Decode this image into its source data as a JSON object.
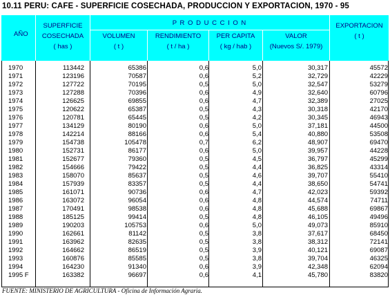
{
  "title": "10.11  PERU:  CAFE  -  SUPERFICIE COSECHADA, PRODUCCION Y EXPORTACION, 1970 - 95",
  "header": {
    "ano": "AÑO",
    "superficie_line1": "SUPERFICIE",
    "superficie_line2": "COSECHADA",
    "superficie_unit": "( has )",
    "produccion": "P R O D U C C I O N",
    "volumen": "VOLUMEN",
    "volumen_unit": "( t )",
    "rendimiento": "RENDIMIENTO",
    "rendimiento_unit": "( t / ha )",
    "per_capita": "PER CAPITA",
    "per_capita_unit": "( kg / hab )",
    "valor": "VALOR",
    "valor_unit": "(Nuevos S/. 1979)",
    "exportacion": "EXPORTACION",
    "exportacion_unit": "( t )"
  },
  "rows": [
    [
      "1970",
      "113442",
      "65386",
      "0,6",
      "5,0",
      "30,317",
      "45572"
    ],
    [
      "1971",
      "123196",
      "70587",
      "0,6",
      "5,2",
      "32,729",
      "42229"
    ],
    [
      "1972",
      "127722",
      "70195",
      "0,5",
      "5,0",
      "32,547",
      "53279"
    ],
    [
      "1973",
      "127288",
      "70396",
      "0,6",
      "4,9",
      "32,640",
      "60796"
    ],
    [
      "1974",
      "126625",
      "69855",
      "0,6",
      "4,7",
      "32,389",
      "27025"
    ],
    [
      "1975",
      "120622",
      "65387",
      "0,5",
      "4,3",
      "30,318",
      "42170"
    ],
    [
      "1976",
      "120781",
      "65445",
      "0,5",
      "4,2",
      "30,345",
      "46943"
    ],
    [
      "1977",
      "134129",
      "80190",
      "0,6",
      "5,0",
      "37,181",
      "44500"
    ],
    [
      "1978",
      "142214",
      "88166",
      "0,6",
      "5,4",
      "40,880",
      "53508"
    ],
    [
      "1979",
      "154738",
      "105478",
      "0,7",
      "6,2",
      "48,907",
      "69470"
    ],
    [
      "1980",
      "152731",
      "86177",
      "0,6",
      "5,0",
      "39,957",
      "44228"
    ],
    [
      "1981",
      "152677",
      "79360",
      "0,5",
      "4,5",
      "36,797",
      "45299"
    ],
    [
      "1982",
      "154666",
      "79422",
      "0,5",
      "4,4",
      "36,825",
      "43314"
    ],
    [
      "1983",
      "158070",
      "85637",
      "0,5",
      "4,6",
      "39,707",
      "55410"
    ],
    [
      "1984",
      "157939",
      "83357",
      "0,5",
      "4,4",
      "38,650",
      "54741"
    ],
    [
      "1985",
      "161071",
      "90736",
      "0,6",
      "4,7",
      "42,023",
      "59392"
    ],
    [
      "1986",
      "163072",
      "96054",
      "0,6",
      "4,8",
      "44,574",
      "74711"
    ],
    [
      "1987",
      "170491",
      "98538",
      "0,6",
      "4,8",
      "45,688",
      "69867"
    ],
    [
      "1988",
      "185125",
      "99414",
      "0,5",
      "4,8",
      "46,105",
      "49496"
    ],
    [
      "1989",
      "190203",
      "105753",
      "0,6",
      "5,0",
      "49,073",
      "85910"
    ],
    [
      "1990",
      "162661",
      "81142",
      "0,5",
      "3,8",
      "37,617",
      "68450"
    ],
    [
      "1991",
      "163962",
      "82635",
      "0,5",
      "3,8",
      "38,312",
      "72141"
    ],
    [
      "1992",
      "164662",
      "86519",
      "0,5",
      "3,9",
      "40,121",
      "69087"
    ],
    [
      "1993",
      "160876",
      "85585",
      "0,5",
      "3,8",
      "39,704",
      "46325"
    ],
    [
      "1994",
      "164230",
      "91340",
      "0,6",
      "3,9",
      "42,348",
      "62094"
    ],
    [
      "1995 F",
      "163382",
      "96697",
      "0,6",
      "4,1",
      "45,780",
      "83820"
    ]
  ],
  "source": "FUENTE: MINISTERIO DE AGRICULTURA - Oficina de Información Agraria.",
  "colors": {
    "header_bg": "#00ffff",
    "header_text": "#000080"
  }
}
